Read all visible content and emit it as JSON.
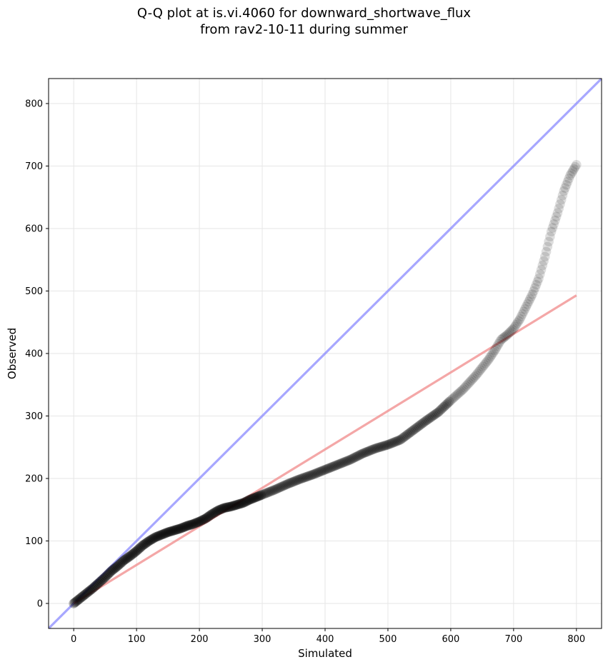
{
  "chart_data": {
    "type": "scatter",
    "title_line1": "Q-Q plot at is.vi.4060 for downward_shortwave_flux",
    "title_line2": "from rav2-10-11 during summer",
    "xlabel": "Simulated",
    "ylabel": "Observed",
    "xlim": [
      -40,
      840
    ],
    "ylim": [
      -40,
      840
    ],
    "xticks": [
      0,
      100,
      200,
      300,
      400,
      500,
      600,
      700,
      800
    ],
    "yticks": [
      0,
      100,
      200,
      300,
      400,
      500,
      600,
      700,
      800
    ],
    "grid": true,
    "quantile_curve": [
      [
        0,
        0
      ],
      [
        10,
        8
      ],
      [
        20,
        16
      ],
      [
        30,
        24
      ],
      [
        40,
        33
      ],
      [
        50,
        42
      ],
      [
        60,
        52
      ],
      [
        70,
        60
      ],
      [
        80,
        69
      ],
      [
        90,
        76
      ],
      [
        100,
        84
      ],
      [
        110,
        93
      ],
      [
        120,
        100
      ],
      [
        130,
        106
      ],
      [
        140,
        110
      ],
      [
        150,
        114
      ],
      [
        160,
        117
      ],
      [
        170,
        120
      ],
      [
        180,
        124
      ],
      [
        190,
        127
      ],
      [
        200,
        131
      ],
      [
        210,
        136
      ],
      [
        220,
        143
      ],
      [
        230,
        149
      ],
      [
        240,
        153
      ],
      [
        250,
        155
      ],
      [
        260,
        158
      ],
      [
        270,
        161
      ],
      [
        280,
        166
      ],
      [
        290,
        170
      ],
      [
        300,
        174
      ],
      [
        320,
        182
      ],
      [
        340,
        191
      ],
      [
        360,
        199
      ],
      [
        380,
        206
      ],
      [
        400,
        214
      ],
      [
        420,
        222
      ],
      [
        440,
        230
      ],
      [
        460,
        240
      ],
      [
        480,
        248
      ],
      [
        500,
        254
      ],
      [
        520,
        262
      ],
      [
        540,
        277
      ],
      [
        560,
        292
      ],
      [
        580,
        306
      ],
      [
        600,
        325
      ],
      [
        620,
        343
      ],
      [
        640,
        365
      ],
      [
        660,
        390
      ],
      [
        670,
        405
      ],
      [
        680,
        422
      ],
      [
        690,
        430
      ],
      [
        700,
        440
      ],
      [
        710,
        455
      ],
      [
        720,
        475
      ],
      [
        730,
        495
      ],
      [
        740,
        520
      ],
      [
        750,
        555
      ],
      [
        760,
        595
      ],
      [
        770,
        625
      ],
      [
        780,
        660
      ],
      [
        790,
        685
      ],
      [
        800,
        702
      ]
    ],
    "reference_lines": [
      {
        "name": "1:1 line",
        "color": "#8a8aff",
        "x": [
          -40,
          840
        ],
        "y": [
          -40,
          840
        ]
      },
      {
        "name": "fit line",
        "color": "#f08a8a",
        "x": [
          0,
          800
        ],
        "y": [
          0,
          493
        ]
      }
    ],
    "point_color": "#000000"
  }
}
